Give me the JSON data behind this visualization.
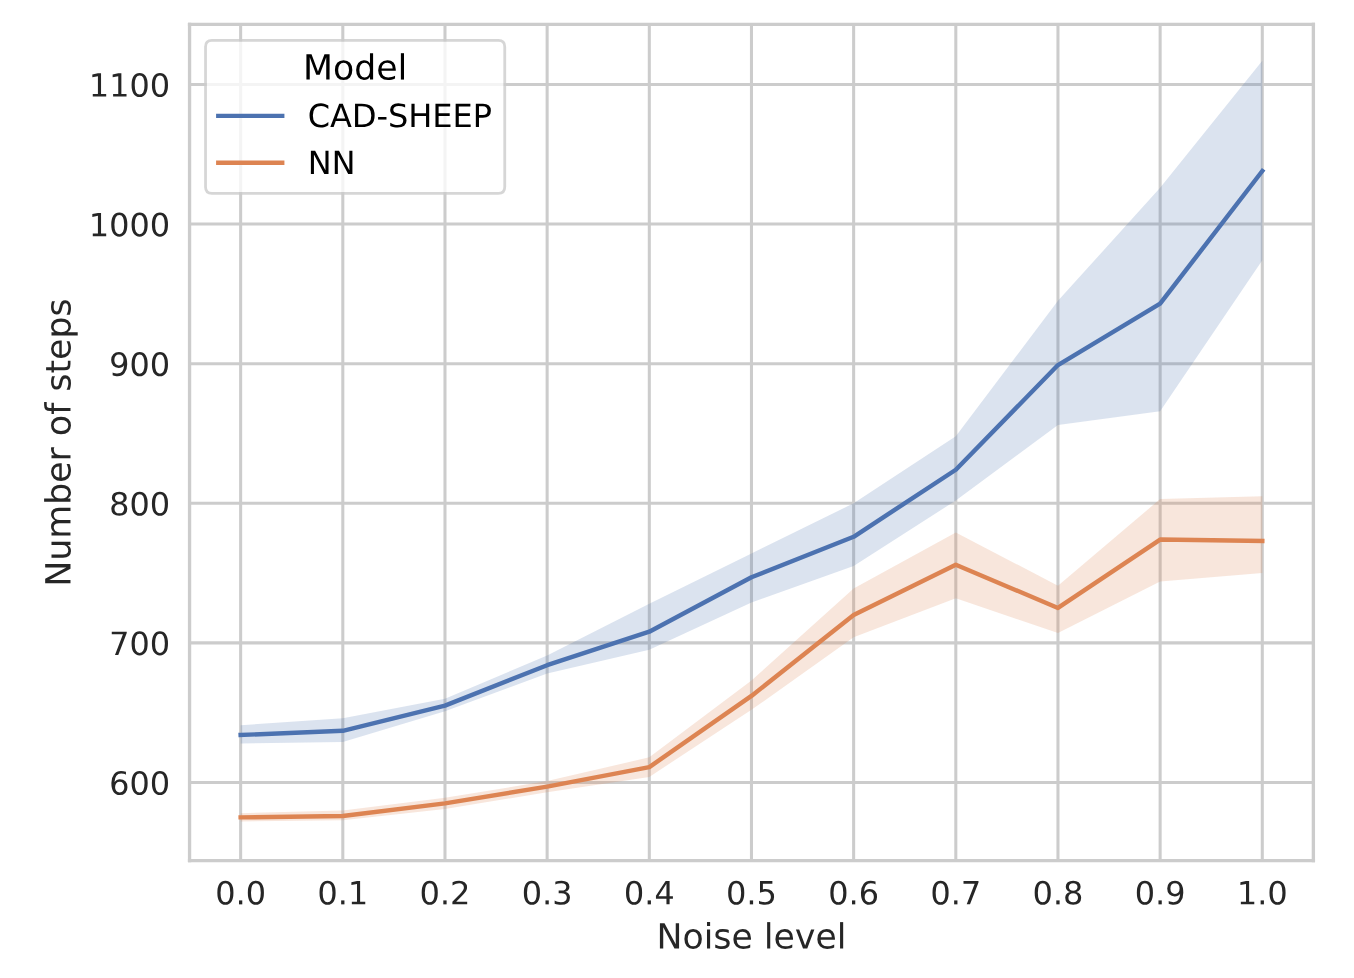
{
  "chart_data": {
    "type": "line",
    "xlabel": "Noise level",
    "ylabel": "Number of steps",
    "legend_title": "Model",
    "legend": "top left",
    "grid": true,
    "x": [
      0.0,
      0.1,
      0.2,
      0.3,
      0.4,
      0.5,
      0.6,
      0.7,
      0.8,
      0.9,
      1.0
    ],
    "xlim": [
      -0.05,
      1.05
    ],
    "xticks": [
      {
        "value": 0.0,
        "label": "0.0"
      },
      0.1,
      0.2,
      0.3,
      0.4,
      0.5,
      0.6,
      0.7,
      0.8,
      0.9,
      {
        "value": 1.0,
        "label": "1.0"
      }
    ],
    "ylim": [
      544,
      1143
    ],
    "yticks": [
      600,
      700,
      800,
      900,
      1000,
      1100
    ],
    "series": [
      {
        "name": "CAD-SHEEP",
        "color": "#4c72b0",
        "values": [
          634,
          637,
          655,
          684,
          708,
          747,
          776,
          824,
          899,
          943,
          1038
        ],
        "lower": [
          628,
          629,
          651,
          678,
          695,
          729,
          755,
          802,
          856,
          866,
          974
        ],
        "upper": [
          641,
          646,
          660,
          691,
          728,
          764,
          800,
          848,
          945,
          1026,
          1117
        ]
      },
      {
        "name": "NN",
        "color": "#dd8452",
        "values": [
          575,
          576,
          585,
          597,
          611,
          662,
          720,
          756,
          725,
          774,
          773
        ],
        "lower": [
          572,
          573,
          581,
          593,
          604,
          652,
          704,
          732,
          707,
          744,
          750
        ],
        "upper": [
          578,
          580,
          589,
          601,
          618,
          673,
          739,
          779,
          741,
          803,
          805
        ]
      }
    ]
  }
}
